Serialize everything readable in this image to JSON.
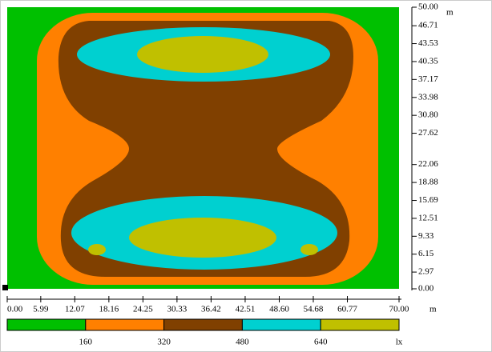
{
  "chart_data": {
    "type": "contour",
    "x_unit": "m",
    "y_unit": "m",
    "xlim": [
      0,
      70
    ],
    "ylim": [
      0,
      50
    ],
    "xticks": [
      {
        "value": 0,
        "label": "0.00"
      },
      {
        "value": 5.99,
        "label": "5.99"
      },
      {
        "value": 12.07,
        "label": "12.07"
      },
      {
        "value": 18.16,
        "label": "18.16"
      },
      {
        "value": 24.25,
        "label": "24.25"
      },
      {
        "value": 30.33,
        "label": "30.33"
      },
      {
        "value": 36.42,
        "label": "36.42"
      },
      {
        "value": 42.51,
        "label": "42.51"
      },
      {
        "value": 48.6,
        "label": "48.60"
      },
      {
        "value": 54.68,
        "label": "54.68"
      },
      {
        "value": 60.77,
        "label": "60.77"
      },
      {
        "value": 70,
        "label": "70.00"
      }
    ],
    "yticks": [
      {
        "value": 0,
        "label": "0.00"
      },
      {
        "value": 2.97,
        "label": "2.97"
      },
      {
        "value": 6.15,
        "label": "6.15"
      },
      {
        "value": 9.33,
        "label": "9.33"
      },
      {
        "value": 12.51,
        "label": "12.51"
      },
      {
        "value": 15.69,
        "label": "15.69"
      },
      {
        "value": 18.88,
        "label": "18.88"
      },
      {
        "value": 22.06,
        "label": "22.06"
      },
      {
        "value": 27.62,
        "label": "27.62"
      },
      {
        "value": 30.8,
        "label": "30.80"
      },
      {
        "value": 33.98,
        "label": "33.98"
      },
      {
        "value": 37.17,
        "label": "37.17"
      },
      {
        "value": 40.35,
        "label": "40.35"
      },
      {
        "value": 43.53,
        "label": "43.53"
      },
      {
        "value": 46.71,
        "label": "46.71"
      },
      {
        "value": 50,
        "label": "50.00"
      }
    ],
    "levels": [
      160,
      320,
      480,
      640
    ],
    "level_unit": "lx",
    "colors": [
      "#00c000",
      "#ff8000",
      "#804000",
      "#00d0d0",
      "#c0c000"
    ]
  }
}
